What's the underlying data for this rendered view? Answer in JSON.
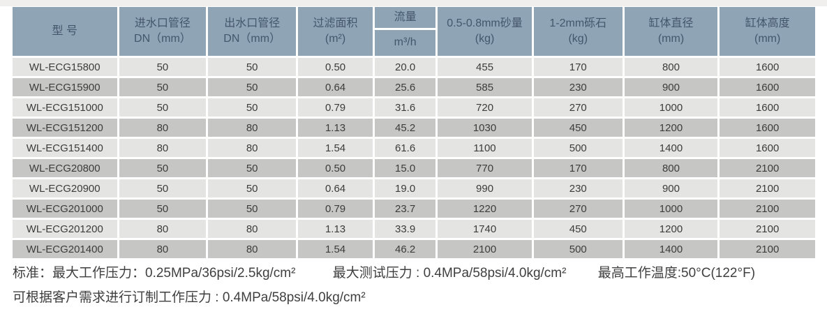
{
  "colors": {
    "top_strip": "#f0efed",
    "header_bg": "#8fa5b6",
    "header_text": "#44566a",
    "row_light": "#e4e4e2",
    "row_dark": "#c6c6c4",
    "cell_text": "#3c3c3c",
    "note_text": "#3f3f3f"
  },
  "table": {
    "columns": [
      {
        "id": "model",
        "lines": [
          "型 号"
        ]
      },
      {
        "id": "inlet-dn",
        "lines": [
          "进水口管径",
          "DN（mm）"
        ]
      },
      {
        "id": "outlet-dn",
        "lines": [
          "出水口管径",
          "DN（mm）"
        ]
      },
      {
        "id": "filter-area",
        "lines": [
          "过滤面积",
          "(m²)"
        ]
      },
      {
        "id": "flow",
        "split": true,
        "top": "流量",
        "bottom": "m³/h"
      },
      {
        "id": "sand-amount",
        "lines": [
          "0.5-0.8mm砂量",
          "(kg)"
        ]
      },
      {
        "id": "gravel",
        "lines": [
          "1-2mm砾石",
          "(kg)"
        ]
      },
      {
        "id": "tank-diameter",
        "lines": [
          "缸体直径",
          "(mm)"
        ]
      },
      {
        "id": "tank-height",
        "lines": [
          "缸体高度",
          "(mm)"
        ]
      }
    ],
    "rows": [
      [
        "WL-ECG15800",
        "50",
        "50",
        "0.50",
        "20.0",
        "455",
        "170",
        "800",
        "1600"
      ],
      [
        "WL-ECG15900",
        "50",
        "50",
        "0.64",
        "25.6",
        "585",
        "230",
        "900",
        "1600"
      ],
      [
        "WL-ECG151000",
        "50",
        "50",
        "0.79",
        "31.6",
        "720",
        "270",
        "1000",
        "1600"
      ],
      [
        "WL-ECG151200",
        "80",
        "80",
        "1.13",
        "45.2",
        "1030",
        "450",
        "1200",
        "1600"
      ],
      [
        "WL-ECG151400",
        "80",
        "80",
        "1.54",
        "61.6",
        "1100",
        "500",
        "1400",
        "1600"
      ],
      [
        "WL-ECG20800",
        "50",
        "50",
        "0.50",
        "15.0",
        "770",
        "170",
        "800",
        "2100"
      ],
      [
        "WL-ECG20900",
        "50",
        "50",
        "0.64",
        "19.0",
        "990",
        "230",
        "900",
        "2100"
      ],
      [
        "WL-ECG201000",
        "50",
        "50",
        "0.79",
        "23.7",
        "1220",
        "270",
        "1000",
        "2100"
      ],
      [
        "WL-ECG201200",
        "80",
        "80",
        "1.13",
        "33.9",
        "1740",
        "450",
        "1200",
        "2100"
      ],
      [
        "WL-ECG201400",
        "80",
        "80",
        "1.54",
        "46.2",
        "2100",
        "500",
        "1400",
        "2100"
      ]
    ]
  },
  "notes": {
    "work_pressure": "标准：最大工作压力：0.25MPa/36psi/2.5kg/cm²",
    "test_pressure": "最大测试压力 : 0.4MPa/58psi/4.0kg/cm²",
    "max_temperature": "最高工作温度:50°C(122°F)",
    "custom_pressure": "可根据客户需求进行订制工作压力 : 0.4MPa/58psi/4.0kg/cm²"
  }
}
